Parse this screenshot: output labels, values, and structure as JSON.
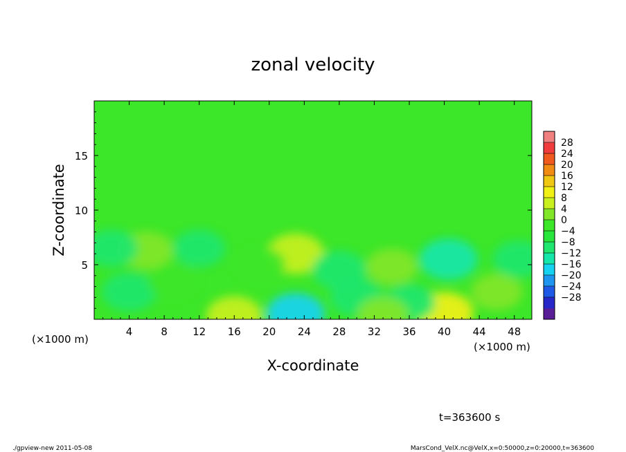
{
  "chart_data": {
    "type": "heatmap",
    "title": "zonal velocity",
    "xlabel": "X-coordinate",
    "ylabel": "Z-coordinate",
    "x_unit_left": "(×1000 m)",
    "x_unit_right": "(×1000 m)",
    "xlim": [
      0,
      50
    ],
    "ylim": [
      0,
      20
    ],
    "x_ticks": [
      {
        "value": 4,
        "label": "4"
      },
      {
        "value": 8,
        "label": "8"
      },
      {
        "value": 12,
        "label": "12"
      },
      {
        "value": 16,
        "label": "16"
      },
      {
        "value": 20,
        "label": "20"
      },
      {
        "value": 24,
        "label": "24"
      },
      {
        "value": 28,
        "label": "28"
      },
      {
        "value": 32,
        "label": "32"
      },
      {
        "value": 36,
        "label": "36"
      },
      {
        "value": 40,
        "label": "40"
      },
      {
        "value": 44,
        "label": "44"
      },
      {
        "value": 48,
        "label": "48"
      }
    ],
    "y_ticks": [
      {
        "value": 5,
        "label": "5"
      },
      {
        "value": 10,
        "label": "10"
      },
      {
        "value": 15,
        "label": "15"
      }
    ],
    "colorbar": {
      "levels": [
        -32,
        -28,
        -24,
        -20,
        -16,
        -12,
        -8,
        -4,
        0,
        4,
        8,
        12,
        16,
        20,
        24,
        28,
        32
      ],
      "labels": [
        "28",
        "24",
        "20",
        "16",
        "12",
        "8",
        "4",
        "0",
        "−4",
        "−8",
        "−12",
        "−16",
        "−20",
        "−24",
        "−28"
      ],
      "colors": [
        "#5a1e96",
        "#2828c8",
        "#1e5ae6",
        "#1e96f0",
        "#14d2f0",
        "#14e6aa",
        "#1ee66e",
        "#28e63c",
        "#3ce628",
        "#82e628",
        "#c8f01e",
        "#f0f014",
        "#f0c814",
        "#f08c14",
        "#f05a1e",
        "#f03c3c",
        "#f08080"
      ]
    },
    "features": [
      {
        "x": 23,
        "z": 0.5,
        "value": -14
      },
      {
        "x": 40,
        "z": 0.6,
        "value": 13
      },
      {
        "x": 16,
        "z": 0.3,
        "value": 8
      },
      {
        "x": 23,
        "z": 6.0,
        "value": 9
      },
      {
        "x": 6,
        "z": 6.3,
        "value": 6
      },
      {
        "x": 40.5,
        "z": 5.5,
        "value": -11
      },
      {
        "x": 28,
        "z": 4.5,
        "value": -7
      },
      {
        "x": 34,
        "z": 4.8,
        "value": 4
      },
      {
        "x": 4,
        "z": 2.5,
        "value": -7
      },
      {
        "x": 12,
        "z": 6.5,
        "value": -5
      },
      {
        "x": 30,
        "z": 2.0,
        "value": -6
      },
      {
        "x": 19,
        "z": 5.0,
        "value": 3
      },
      {
        "x": 46,
        "z": 2.5,
        "value": 4
      },
      {
        "x": 48.5,
        "z": 5.5,
        "value": -5
      },
      {
        "x": 2,
        "z": 6.5,
        "value": -5
      },
      {
        "x": 36,
        "z": 1.5,
        "value": -5
      },
      {
        "x": 9,
        "z": 3.5,
        "value": 3
      },
      {
        "x": 33,
        "z": 0.4,
        "value": 4
      }
    ]
  },
  "annotations": {
    "time_label": "t=363600 s",
    "footer_left": "./gpview-new  2011-05-08",
    "footer_right": "MarsCond_VelX.nc@VelX,x=0:50000,z=0:20000,t=363600"
  }
}
